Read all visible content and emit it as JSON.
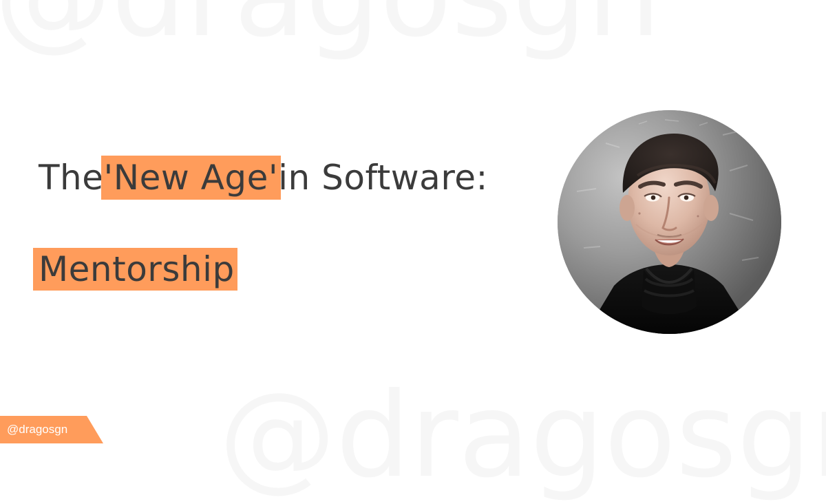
{
  "watermark": {
    "text": "@dragosgn"
  },
  "headline": {
    "before": "The ",
    "highlight": "'New Age'",
    "after": " in Software:"
  },
  "subtitle": {
    "text": "Mentorship"
  },
  "handle": {
    "text": "@dragosgn"
  },
  "colors": {
    "accent": "#ff9c5b",
    "text": "#3b3b3b",
    "watermark": "#f6f6f6",
    "background": "#ffffff"
  },
  "avatar": {
    "icon": "profile-photo"
  }
}
